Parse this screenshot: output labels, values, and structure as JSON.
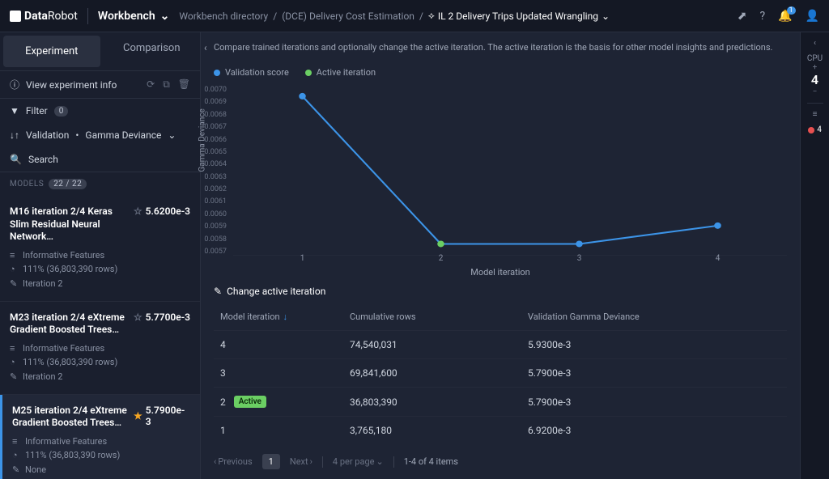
{
  "header": {
    "brand_a": "Data",
    "brand_b": "Robot",
    "title": "Workbench",
    "breadcrumb": [
      "Workbench directory",
      "(DCE) Delivery Cost Estimation",
      "IL 2 Delivery Trips Updated Wrangling"
    ],
    "notif_count": "1"
  },
  "sidebar": {
    "tabs": {
      "experiment": "Experiment",
      "comparison": "Comparison"
    },
    "view_info": "View experiment info",
    "filter": "Filter",
    "filter_count": "0",
    "sort": "Validation",
    "metric": "Gamma Deviance",
    "search": "Search",
    "models_label": "MODELS",
    "models_count": "22 / 22",
    "models": [
      {
        "title": "M16 iteration 2/4 Keras Slim Residual Neural Network…",
        "score": "5.6200e-3",
        "starred": false,
        "features": "Informative Features",
        "sample": "111% (36,803,390 rows)",
        "iter": "Iteration 2",
        "active": false
      },
      {
        "title": "M23 iteration 2/4 eXtreme Gradient Boosted Trees…",
        "score": "5.7700e-3",
        "starred": false,
        "features": "Informative Features",
        "sample": "111% (36,803,390 rows)",
        "iter": "Iteration 2",
        "active": false
      },
      {
        "title": "M25 iteration 2/4 eXtreme Gradient Boosted Trees…",
        "score": "5.7900e-3",
        "starred": true,
        "features": "Informative Features",
        "sample": "111% (36,803,390 rows)",
        "iter": "None",
        "active": true
      }
    ]
  },
  "content": {
    "desc": "Compare trained iterations and optionally change the active iteration. The active iteration is the basis for other model insights and predictions.",
    "legend": {
      "validation": "Validation score",
      "active": "Active iteration"
    },
    "legend_colors": {
      "validation": "#3c94e8",
      "active": "#6bcf63"
    },
    "chart": {
      "y_label": "Gamma Deviance",
      "x_label": "Model iteration",
      "y_ticks": [
        "0.0070",
        "0.0069",
        "0.0068",
        "0.0067",
        "0.0066",
        "0.0065",
        "0.0064",
        "0.0063",
        "0.0062",
        "0.0061",
        "0.0060",
        "0.0059",
        "0.0058",
        "0.0057"
      ],
      "x_ticks": [
        "1",
        "2",
        "3",
        "4"
      ],
      "points": [
        {
          "x": 1,
          "y": 0.00692,
          "active": false
        },
        {
          "x": 2,
          "y": 0.00579,
          "active": true
        },
        {
          "x": 3,
          "y": 0.00579,
          "active": false
        },
        {
          "x": 4,
          "y": 0.00593,
          "active": false
        }
      ],
      "y_min": 0.0057,
      "y_max": 0.007
    },
    "change_title": "Change active iteration",
    "table": {
      "col1": "Model iteration",
      "col2": "Cumulative rows",
      "col3": "Validation Gamma Deviance",
      "active_label": "Active",
      "rows": [
        {
          "iter": "4",
          "rows": "74,540,031",
          "val": "5.9300e-3",
          "active": false
        },
        {
          "iter": "3",
          "rows": "69,841,600",
          "val": "5.7900e-3",
          "active": false
        },
        {
          "iter": "2",
          "rows": "36,803,390",
          "val": "5.7900e-3",
          "active": true
        },
        {
          "iter": "1",
          "rows": "3,765,180",
          "val": "6.9200e-3",
          "active": false
        }
      ]
    },
    "pagination": {
      "prev": "Previous",
      "page": "1",
      "next": "Next",
      "per_page": "4 per page",
      "info": "1-4 of 4 items"
    }
  },
  "rightbar": {
    "cpu_label": "CPU",
    "cpu_count": "4",
    "queue_count": "4"
  }
}
